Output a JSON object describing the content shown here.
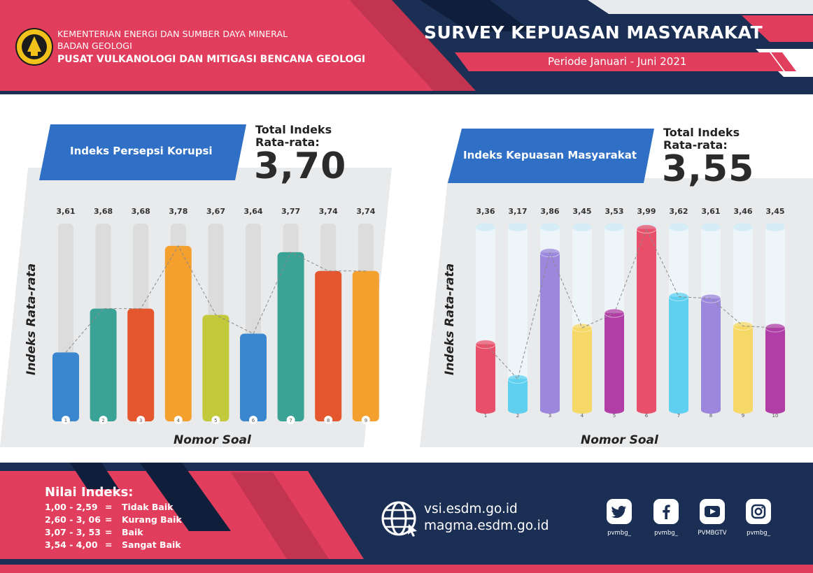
{
  "header": {
    "ministry": "KEMENTERIAN ENERGI DAN SUMBER DAYA MINERAL",
    "agency": "BADAN GEOLOGI",
    "center": "PUSAT VULKANOLOGI DAN MITIGASI BENCANA GEOLOGI",
    "title": "SURVEY KEPUASAN MASYARAKAT",
    "period": "Periode Januari - Juni 2021"
  },
  "colors": {
    "crimson": "#e03e5c",
    "navy": "#1b2f55",
    "blue_banner": "#2f6fc5"
  },
  "chart_data": [
    {
      "type": "bar",
      "panel_label": "Indeks Persepsi Korupsi",
      "total_label": "Total Indeks Rata-rata:",
      "total_value": "3,70",
      "xlabel": "Nomor Soal",
      "ylabel": "Indeks Rata-rata",
      "categories": [
        "1",
        "2",
        "3",
        "4",
        "5",
        "6",
        "7",
        "8",
        "9"
      ],
      "values": [
        3.61,
        3.68,
        3.68,
        3.78,
        3.67,
        3.64,
        3.77,
        3.74,
        3.74
      ],
      "value_labels": [
        "3,61",
        "3,68",
        "3,68",
        "3,78",
        "3,67",
        "3,64",
        "3,77",
        "3,74",
        "3,74"
      ],
      "colors": [
        "#3a86cf",
        "#3aa395",
        "#e4562e",
        "#f4a02e",
        "#c2c93a",
        "#3a86cf",
        "#3aa395",
        "#e4562e",
        "#f4a02e"
      ],
      "ylim": [
        3.5,
        3.8
      ]
    },
    {
      "type": "bar",
      "panel_label": "Indeks Kepuasan Masyarakat",
      "total_label": "Total Indeks Rata-rata:",
      "total_value": "3,55",
      "xlabel": "Nomor Soal",
      "ylabel": "Indeks Rata-rata",
      "categories": [
        "1",
        "2",
        "3",
        "4",
        "5",
        "6",
        "7",
        "8",
        "9",
        "10"
      ],
      "values": [
        3.36,
        3.17,
        3.86,
        3.45,
        3.53,
        3.99,
        3.62,
        3.61,
        3.46,
        3.45
      ],
      "value_labels": [
        "3,36",
        "3,17",
        "3,86",
        "3,45",
        "3,53",
        "3,99",
        "3,62",
        "3,61",
        "3,46",
        "3,45"
      ],
      "colors": [
        "#e8506a",
        "#5fd0f0",
        "#9b87dc",
        "#f6d866",
        "#b03ea6",
        "#e8506a",
        "#5fd0f0",
        "#9b87dc",
        "#f6d866",
        "#b03ea6"
      ],
      "ylim": [
        3.0,
        4.0
      ]
    }
  ],
  "legend": {
    "title": "Nilai Indeks:",
    "rows": [
      {
        "range": "1,00 - 2,59",
        "eq": "=",
        "label": "Tidak Baik"
      },
      {
        "range": "2,60 - 3, 06",
        "eq": "=",
        "label": "Kurang Baik"
      },
      {
        "range": "3,07 - 3, 53",
        "eq": "=",
        "label": "Baik"
      },
      {
        "range": "3,54 - 4,00",
        "eq": "=",
        "label": "Sangat Baik"
      }
    ]
  },
  "links": {
    "site1": "vsi.esdm.go.id",
    "site2": "magma.esdm.go.id"
  },
  "social": [
    {
      "icon": "twitter-icon",
      "handle": "pvmbg_"
    },
    {
      "icon": "facebook-icon",
      "handle": "pvmbg_"
    },
    {
      "icon": "youtube-icon",
      "handle": "PVMBGTV"
    },
    {
      "icon": "instagram-icon",
      "handle": "pvmbg_"
    }
  ]
}
